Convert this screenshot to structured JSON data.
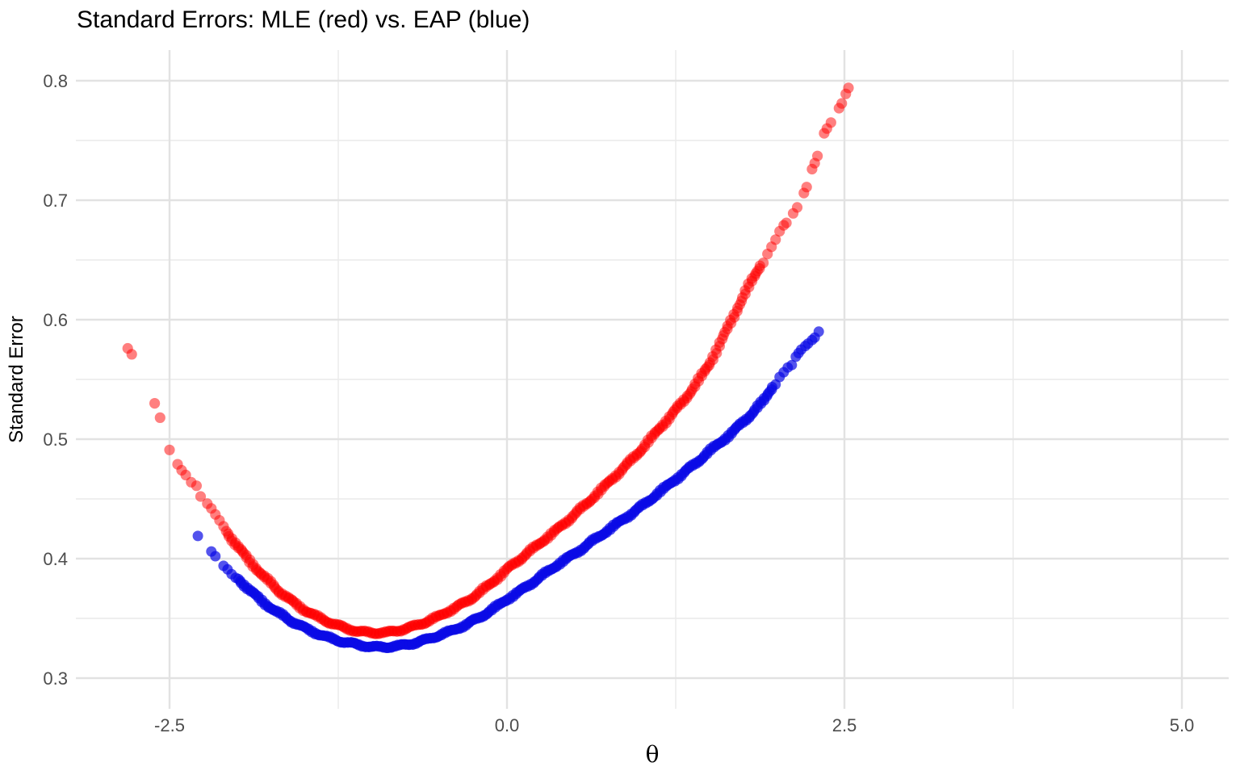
{
  "title": "Standard Errors: MLE (red) vs. EAP (blue)",
  "axes": {
    "x": {
      "label": "θ",
      "tick_labels": [
        "-2.5",
        "0.0",
        "2.5",
        "5.0"
      ]
    },
    "y": {
      "label": "Standard Error",
      "tick_labels": [
        "0.3",
        "0.4",
        "0.5",
        "0.6",
        "0.7",
        "0.8"
      ]
    }
  },
  "colors": {
    "background": "#FFFFFF",
    "grid_major": "#E2E2E2",
    "grid_minor": "#EAEAEA",
    "tick_text": "#4D4D4D",
    "title_text": "#000000",
    "mle_red": "#FF0000",
    "eap_blue": "#0A0AE6"
  },
  "chart_data": {
    "type": "scatter",
    "title": "Standard Errors: MLE (red) vs. EAP (blue)",
    "xlabel": "θ",
    "ylabel": "Standard Error",
    "xlim": [
      -3.19,
      5.35
    ],
    "ylim": [
      0.274,
      0.826
    ],
    "x_ticks": [
      -2.5,
      0.0,
      2.5,
      5.0
    ],
    "x_tick_labels": [
      "-2.5",
      "0.0",
      "2.5",
      "5.0"
    ],
    "x_minor_ticks": [
      -1.25,
      1.25,
      3.75
    ],
    "y_ticks": [
      0.3,
      0.4,
      0.5,
      0.6,
      0.7,
      0.8
    ],
    "y_tick_labels": [
      "0.3",
      "0.4",
      "0.5",
      "0.6",
      "0.7",
      "0.8"
    ],
    "y_minor_ticks": [
      0.35,
      0.45,
      0.55,
      0.65,
      0.75
    ],
    "grid": "major+minor",
    "legend": "none",
    "series": [
      {
        "name": "MLE",
        "color": "rgba(255,0,0,0.5)",
        "point_radius": 6.6,
        "dense_theta_range": [
          -2.08,
          1.9
        ],
        "dense_theta_step": 0.012,
        "curve": [
          [
            -2.08,
            0.423
          ],
          [
            -2.0,
            0.411
          ],
          [
            -1.9,
            0.397
          ],
          [
            -1.8,
            0.385
          ],
          [
            -1.7,
            0.374
          ],
          [
            -1.6,
            0.365
          ],
          [
            -1.5,
            0.357
          ],
          [
            -1.4,
            0.351
          ],
          [
            -1.3,
            0.346
          ],
          [
            -1.2,
            0.342
          ],
          [
            -1.1,
            0.339
          ],
          [
            -1.0,
            0.338
          ],
          [
            -0.9,
            0.338
          ],
          [
            -0.8,
            0.34
          ],
          [
            -0.7,
            0.343
          ],
          [
            -0.6,
            0.347
          ],
          [
            -0.5,
            0.352
          ],
          [
            -0.4,
            0.358
          ],
          [
            -0.3,
            0.364
          ],
          [
            -0.2,
            0.372
          ],
          [
            -0.1,
            0.381
          ],
          [
            0.0,
            0.391
          ],
          [
            0.1,
            0.4
          ],
          [
            0.2,
            0.409
          ],
          [
            0.3,
            0.418
          ],
          [
            0.4,
            0.427
          ],
          [
            0.5,
            0.437
          ],
          [
            0.6,
            0.447
          ],
          [
            0.7,
            0.458
          ],
          [
            0.8,
            0.469
          ],
          [
            0.9,
            0.48
          ],
          [
            1.0,
            0.492
          ],
          [
            1.1,
            0.505
          ],
          [
            1.2,
            0.518
          ],
          [
            1.3,
            0.531
          ],
          [
            1.4,
            0.546
          ],
          [
            1.5,
            0.563
          ],
          [
            1.6,
            0.585
          ],
          [
            1.7,
            0.608
          ],
          [
            1.8,
            0.63
          ],
          [
            1.9,
            0.65
          ]
        ],
        "sparse_points_low": [
          [
            -2.81,
            0.576
          ],
          [
            -2.78,
            0.571
          ],
          [
            -2.61,
            0.53
          ],
          [
            -2.57,
            0.518
          ],
          [
            -2.5,
            0.491
          ],
          [
            -2.44,
            0.479
          ],
          [
            -2.41,
            0.474
          ],
          [
            -2.38,
            0.47
          ],
          [
            -2.34,
            0.464
          ],
          [
            -2.3,
            0.461
          ],
          [
            -2.27,
            0.452
          ],
          [
            -2.22,
            0.446
          ],
          [
            -2.19,
            0.442
          ],
          [
            -2.16,
            0.437
          ],
          [
            -2.13,
            0.432
          ],
          [
            -2.1,
            0.427
          ]
        ],
        "sparse_points_high": [
          [
            1.93,
            0.655
          ],
          [
            1.96,
            0.661
          ],
          [
            1.99,
            0.667
          ],
          [
            2.02,
            0.674
          ],
          [
            2.05,
            0.679
          ],
          [
            2.07,
            0.681
          ],
          [
            2.12,
            0.689
          ],
          [
            2.15,
            0.694
          ],
          [
            2.2,
            0.706
          ],
          [
            2.22,
            0.711
          ],
          [
            2.26,
            0.726
          ],
          [
            2.28,
            0.731
          ],
          [
            2.3,
            0.737
          ],
          [
            2.35,
            0.756
          ],
          [
            2.37,
            0.76
          ],
          [
            2.4,
            0.765
          ],
          [
            2.46,
            0.777
          ],
          [
            2.48,
            0.781
          ],
          [
            2.51,
            0.789
          ],
          [
            2.53,
            0.794
          ]
        ]
      },
      {
        "name": "EAP",
        "color": "rgba(10,10,230,0.7)",
        "point_radius": 6.5,
        "dense_theta_range": [
          -1.99,
          1.99
        ],
        "dense_theta_step": 0.012,
        "curve": [
          [
            -1.99,
            0.383
          ],
          [
            -1.9,
            0.373
          ],
          [
            -1.8,
            0.363
          ],
          [
            -1.7,
            0.355
          ],
          [
            -1.6,
            0.348
          ],
          [
            -1.5,
            0.342
          ],
          [
            -1.4,
            0.337
          ],
          [
            -1.3,
            0.333
          ],
          [
            -1.2,
            0.33
          ],
          [
            -1.1,
            0.328
          ],
          [
            -1.0,
            0.326
          ],
          [
            -0.9,
            0.326
          ],
          [
            -0.8,
            0.327
          ],
          [
            -0.7,
            0.329
          ],
          [
            -0.6,
            0.332
          ],
          [
            -0.5,
            0.336
          ],
          [
            -0.4,
            0.34
          ],
          [
            -0.3,
            0.345
          ],
          [
            -0.2,
            0.351
          ],
          [
            -0.1,
            0.358
          ],
          [
            0.0,
            0.366
          ],
          [
            0.1,
            0.373
          ],
          [
            0.2,
            0.381
          ],
          [
            0.3,
            0.389
          ],
          [
            0.4,
            0.397
          ],
          [
            0.5,
            0.404
          ],
          [
            0.6,
            0.412
          ],
          [
            0.7,
            0.42
          ],
          [
            0.8,
            0.428
          ],
          [
            0.9,
            0.436
          ],
          [
            1.0,
            0.444
          ],
          [
            1.1,
            0.453
          ],
          [
            1.2,
            0.462
          ],
          [
            1.3,
            0.471
          ],
          [
            1.4,
            0.48
          ],
          [
            1.5,
            0.49
          ],
          [
            1.6,
            0.499
          ],
          [
            1.7,
            0.509
          ],
          [
            1.8,
            0.52
          ],
          [
            1.9,
            0.532
          ],
          [
            1.99,
            0.548
          ]
        ],
        "sparse_points_low": [
          [
            -2.29,
            0.419
          ],
          [
            -2.19,
            0.406
          ],
          [
            -2.16,
            0.402
          ],
          [
            -2.1,
            0.394
          ],
          [
            -2.07,
            0.391
          ],
          [
            -2.04,
            0.387
          ],
          [
            -2.01,
            0.384
          ]
        ],
        "sparse_points_high": [
          [
            2.02,
            0.552
          ],
          [
            2.05,
            0.556
          ],
          [
            2.08,
            0.56
          ],
          [
            2.11,
            0.562
          ],
          [
            2.14,
            0.569
          ],
          [
            2.16,
            0.572
          ],
          [
            2.18,
            0.575
          ],
          [
            2.21,
            0.578
          ],
          [
            2.23,
            0.58
          ],
          [
            2.26,
            0.583
          ],
          [
            2.28,
            0.585
          ],
          [
            2.31,
            0.59
          ]
        ]
      }
    ]
  }
}
